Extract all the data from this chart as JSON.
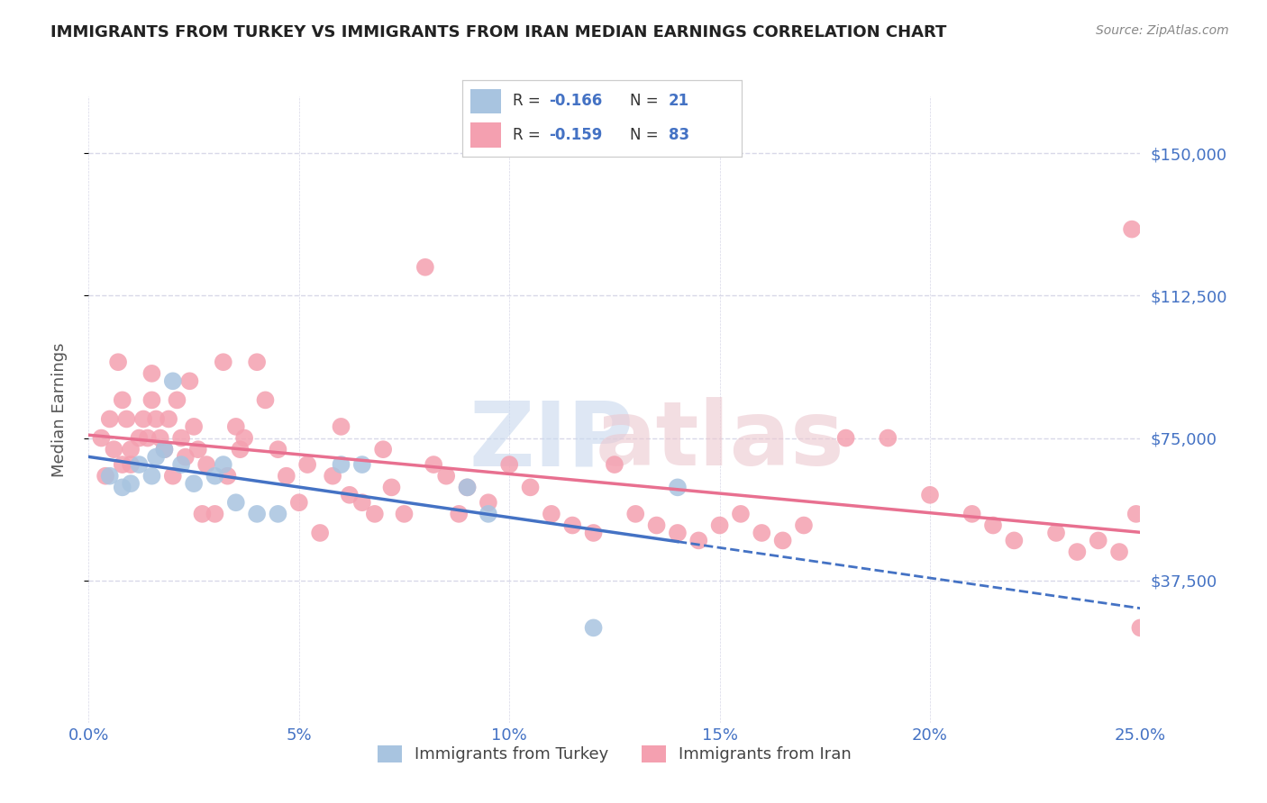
{
  "title": "IMMIGRANTS FROM TURKEY VS IMMIGRANTS FROM IRAN MEDIAN EARNINGS CORRELATION CHART",
  "source": "Source: ZipAtlas.com",
  "ylabel": "Median Earnings",
  "xlim": [
    0.0,
    0.25
  ],
  "ylim": [
    0,
    165000
  ],
  "yticks": [
    37500,
    75000,
    112500,
    150000
  ],
  "xticks": [
    0.0,
    0.05,
    0.1,
    0.15,
    0.2,
    0.25
  ],
  "background_color": "#ffffff",
  "legend_r_turkey": "-0.166",
  "legend_n_turkey": "21",
  "legend_r_iran": "-0.159",
  "legend_n_iran": "83",
  "color_turkey": "#a8c4e0",
  "color_iran": "#f4a0b0",
  "color_turkey_line": "#4472c4",
  "color_iran_line": "#e87090",
  "color_axis_labels": "#4472c4",
  "turkey_x": [
    0.005,
    0.008,
    0.01,
    0.012,
    0.015,
    0.016,
    0.018,
    0.02,
    0.022,
    0.025,
    0.03,
    0.032,
    0.035,
    0.04,
    0.045,
    0.06,
    0.065,
    0.09,
    0.095,
    0.12,
    0.14
  ],
  "turkey_y": [
    65000,
    62000,
    63000,
    68000,
    65000,
    70000,
    72000,
    90000,
    68000,
    63000,
    65000,
    68000,
    58000,
    55000,
    55000,
    68000,
    68000,
    62000,
    55000,
    25000,
    62000
  ],
  "iran_x": [
    0.003,
    0.004,
    0.005,
    0.006,
    0.007,
    0.008,
    0.008,
    0.009,
    0.01,
    0.01,
    0.012,
    0.013,
    0.014,
    0.015,
    0.015,
    0.016,
    0.017,
    0.018,
    0.019,
    0.02,
    0.021,
    0.022,
    0.023,
    0.024,
    0.025,
    0.026,
    0.027,
    0.028,
    0.03,
    0.032,
    0.033,
    0.035,
    0.036,
    0.037,
    0.04,
    0.042,
    0.045,
    0.047,
    0.05,
    0.052,
    0.055,
    0.058,
    0.06,
    0.062,
    0.065,
    0.068,
    0.07,
    0.072,
    0.075,
    0.08,
    0.082,
    0.085,
    0.088,
    0.09,
    0.095,
    0.1,
    0.105,
    0.11,
    0.115,
    0.12,
    0.125,
    0.13,
    0.135,
    0.14,
    0.145,
    0.15,
    0.155,
    0.16,
    0.165,
    0.17,
    0.18,
    0.19,
    0.2,
    0.21,
    0.215,
    0.22,
    0.23,
    0.235,
    0.24,
    0.245,
    0.248,
    0.249,
    0.25
  ],
  "iran_y": [
    75000,
    65000,
    80000,
    72000,
    95000,
    68000,
    85000,
    80000,
    72000,
    68000,
    75000,
    80000,
    75000,
    92000,
    85000,
    80000,
    75000,
    72000,
    80000,
    65000,
    85000,
    75000,
    70000,
    90000,
    78000,
    72000,
    55000,
    68000,
    55000,
    95000,
    65000,
    78000,
    72000,
    75000,
    95000,
    85000,
    72000,
    65000,
    58000,
    68000,
    50000,
    65000,
    78000,
    60000,
    58000,
    55000,
    72000,
    62000,
    55000,
    120000,
    68000,
    65000,
    55000,
    62000,
    58000,
    68000,
    62000,
    55000,
    52000,
    50000,
    68000,
    55000,
    52000,
    50000,
    48000,
    52000,
    55000,
    50000,
    48000,
    52000,
    75000,
    75000,
    60000,
    55000,
    52000,
    48000,
    50000,
    45000,
    48000,
    45000,
    130000,
    55000,
    25000
  ]
}
